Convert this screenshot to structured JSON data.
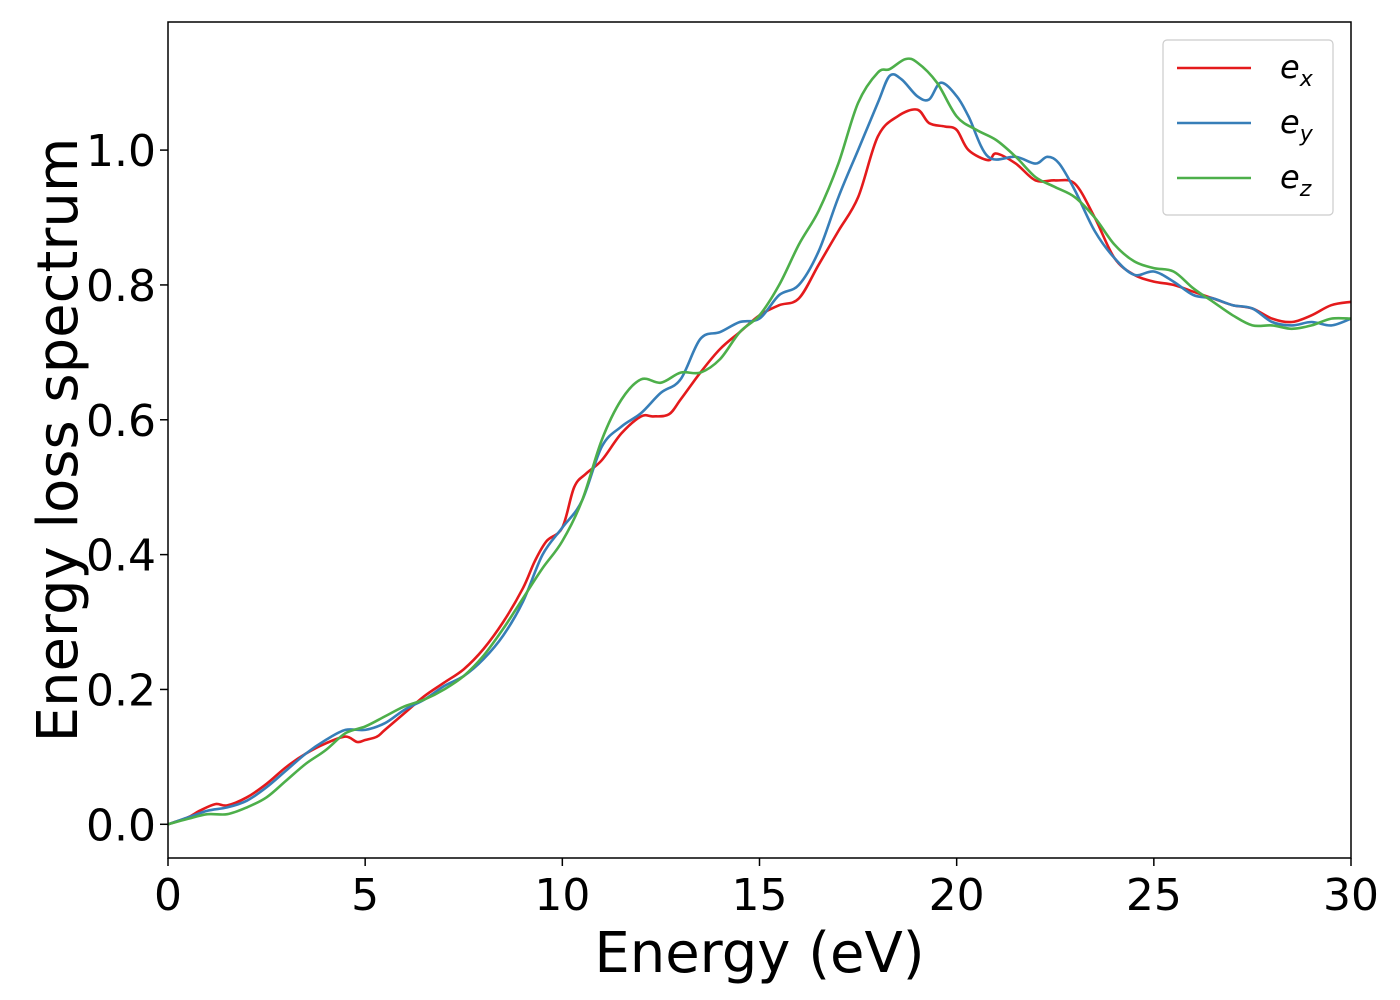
{
  "chart_data": {
    "type": "line",
    "title": "",
    "xlabel": "Energy (eV)",
    "ylabel": "Energy loss spectrum",
    "xlim": [
      0,
      30
    ],
    "ylim": [
      -0.05,
      1.19
    ],
    "xticks": [
      0,
      5,
      10,
      15,
      20,
      25,
      30
    ],
    "xtick_labels": [
      "0",
      "5",
      "10",
      "15",
      "20",
      "25",
      "30"
    ],
    "yticks": [
      0.0,
      0.2,
      0.4,
      0.6,
      0.8,
      1.0
    ],
    "ytick_labels": [
      "0.0",
      "0.2",
      "0.4",
      "0.6",
      "0.8",
      "1.0"
    ],
    "grid": false,
    "legend_position": "top-right",
    "series": [
      {
        "name": "e_x",
        "label_base": "e",
        "label_sub": "x",
        "color": "#e41a1c",
        "x": [
          0,
          0.5,
          0.8,
          1.2,
          1.5,
          2,
          2.5,
          3,
          3.5,
          4,
          4.5,
          4.8,
          5,
          5.3,
          5.5,
          6,
          6.5,
          7,
          7.5,
          8,
          8.5,
          9,
          9.3,
          9.6,
          10,
          10.3,
          10.6,
          11,
          11.5,
          12,
          12.3,
          12.7,
          13,
          13.5,
          14,
          14.5,
          15,
          15.5,
          16,
          16.5,
          17,
          17.5,
          18,
          18.5,
          19,
          19.3,
          19.7,
          20,
          20.3,
          20.8,
          21,
          21.5,
          22,
          22.5,
          23,
          23.5,
          24,
          24.5,
          25,
          25.5,
          26,
          26.5,
          27,
          27.5,
          28,
          28.5,
          29,
          29.5,
          30
        ],
        "y": [
          0.0,
          0.01,
          0.02,
          0.03,
          0.028,
          0.04,
          0.06,
          0.085,
          0.105,
          0.12,
          0.13,
          0.122,
          0.125,
          0.13,
          0.14,
          0.165,
          0.19,
          0.21,
          0.23,
          0.26,
          0.3,
          0.35,
          0.39,
          0.42,
          0.44,
          0.5,
          0.52,
          0.54,
          0.58,
          0.605,
          0.605,
          0.608,
          0.63,
          0.67,
          0.705,
          0.73,
          0.755,
          0.77,
          0.78,
          0.83,
          0.88,
          0.93,
          1.02,
          1.05,
          1.06,
          1.04,
          1.035,
          1.03,
          1.0,
          0.985,
          0.995,
          0.98,
          0.955,
          0.955,
          0.95,
          0.9,
          0.84,
          0.815,
          0.805,
          0.8,
          0.79,
          0.78,
          0.77,
          0.765,
          0.75,
          0.745,
          0.755,
          0.77,
          0.775
        ]
      },
      {
        "name": "e_y",
        "label_base": "e",
        "label_sub": "y",
        "color": "#377eb8",
        "x": [
          0,
          0.5,
          1,
          1.5,
          2,
          2.5,
          3,
          3.5,
          4,
          4.5,
          5,
          5.5,
          6,
          6.5,
          7,
          7.5,
          8,
          8.5,
          9,
          9.5,
          10,
          10.5,
          11,
          11.5,
          12,
          12.5,
          13,
          13.5,
          14,
          14.5,
          15,
          15.5,
          16,
          16.5,
          17,
          17.5,
          18,
          18.3,
          18.6,
          19,
          19.3,
          19.6,
          20,
          20.3,
          20.8,
          21.5,
          22,
          22.3,
          22.6,
          23,
          23.5,
          24,
          24.5,
          25,
          25.5,
          26,
          26.5,
          27,
          27.5,
          28,
          28.5,
          29,
          29.5,
          30
        ],
        "y": [
          0.0,
          0.01,
          0.02,
          0.025,
          0.035,
          0.055,
          0.08,
          0.105,
          0.125,
          0.14,
          0.14,
          0.15,
          0.17,
          0.185,
          0.205,
          0.22,
          0.245,
          0.28,
          0.33,
          0.4,
          0.44,
          0.48,
          0.56,
          0.59,
          0.61,
          0.64,
          0.66,
          0.72,
          0.73,
          0.745,
          0.75,
          0.785,
          0.8,
          0.85,
          0.93,
          1.0,
          1.07,
          1.11,
          1.105,
          1.08,
          1.075,
          1.1,
          1.08,
          1.05,
          0.99,
          0.99,
          0.98,
          0.99,
          0.98,
          0.94,
          0.88,
          0.84,
          0.815,
          0.82,
          0.805,
          0.785,
          0.78,
          0.77,
          0.765,
          0.745,
          0.74,
          0.745,
          0.74,
          0.75
        ]
      },
      {
        "name": "e_z",
        "label_base": "e",
        "label_sub": "z",
        "color": "#4daf4a",
        "x": [
          0,
          0.5,
          1,
          1.5,
          2,
          2.5,
          3,
          3.5,
          4,
          4.5,
          5,
          5.5,
          6,
          6.5,
          7,
          7.5,
          8,
          8.5,
          9,
          9.5,
          10,
          10.5,
          11,
          11.5,
          12,
          12.5,
          13,
          13.5,
          14,
          14.5,
          15,
          15.5,
          16,
          16.5,
          17,
          17.5,
          18,
          18.3,
          18.7,
          19,
          19.5,
          20,
          20.5,
          21,
          21.5,
          22,
          22.5,
          23,
          23.5,
          24,
          24.5,
          25,
          25.5,
          26,
          26.5,
          27,
          27.5,
          28,
          28.5,
          29,
          29.5,
          30
        ],
        "y": [
          0.0,
          0.008,
          0.015,
          0.015,
          0.025,
          0.04,
          0.065,
          0.09,
          0.11,
          0.135,
          0.145,
          0.16,
          0.175,
          0.185,
          0.2,
          0.22,
          0.25,
          0.29,
          0.335,
          0.38,
          0.42,
          0.48,
          0.57,
          0.63,
          0.66,
          0.655,
          0.67,
          0.67,
          0.69,
          0.73,
          0.755,
          0.8,
          0.86,
          0.91,
          0.98,
          1.07,
          1.115,
          1.12,
          1.135,
          1.13,
          1.1,
          1.05,
          1.03,
          1.015,
          0.99,
          0.96,
          0.945,
          0.93,
          0.9,
          0.86,
          0.835,
          0.825,
          0.82,
          0.795,
          0.775,
          0.755,
          0.74,
          0.74,
          0.735,
          0.74,
          0.75,
          0.75
        ]
      }
    ]
  }
}
